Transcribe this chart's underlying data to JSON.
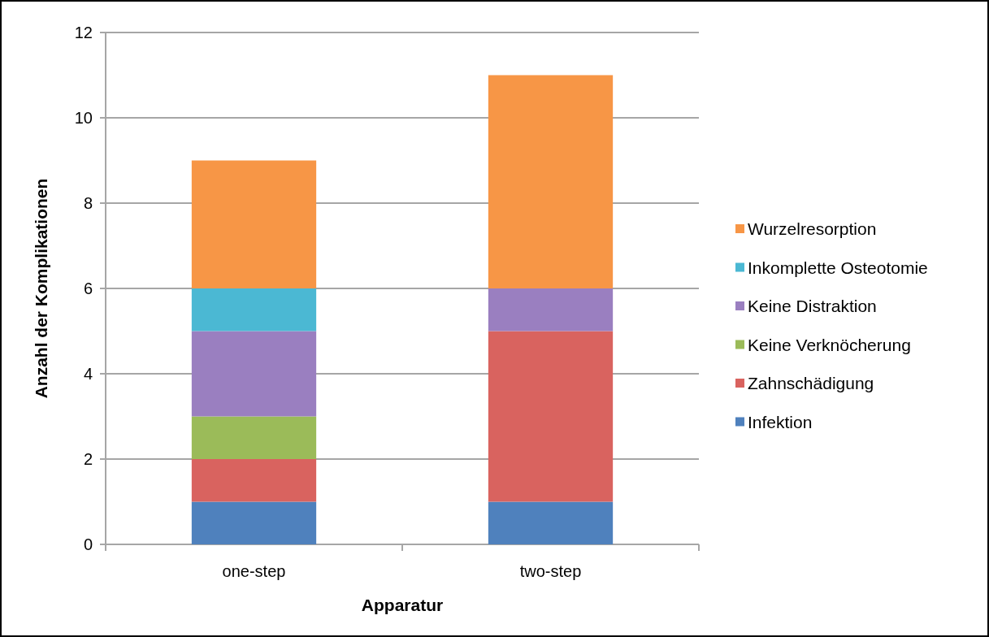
{
  "chart_data": {
    "type": "bar",
    "stacked": true,
    "xlabel": "Apparatur",
    "ylabel": "Anzahl der Komplikationen",
    "categories": [
      "one-step",
      "two-step"
    ],
    "series": [
      {
        "name": "Infektion",
        "color": "#4f81bd",
        "values": [
          1,
          1
        ]
      },
      {
        "name": "Zahnschädigung",
        "color": "#d9635f",
        "values": [
          1,
          4
        ]
      },
      {
        "name": "Keine Verknöcherung",
        "color": "#9bbb59",
        "values": [
          1,
          0
        ]
      },
      {
        "name": "Keine Distraktion",
        "color": "#9a7fc0",
        "values": [
          2,
          1
        ]
      },
      {
        "name": "Inkomplette Osteotomie",
        "color": "#4bb8d3",
        "values": [
          1,
          0
        ]
      },
      {
        "name": "Wurzelresorption",
        "color": "#f79646",
        "values": [
          3,
          5
        ]
      }
    ],
    "ylim": [
      0,
      12
    ],
    "yticks": [
      0,
      2,
      4,
      6,
      8,
      10,
      12
    ],
    "grid": "y",
    "legend": "right"
  }
}
